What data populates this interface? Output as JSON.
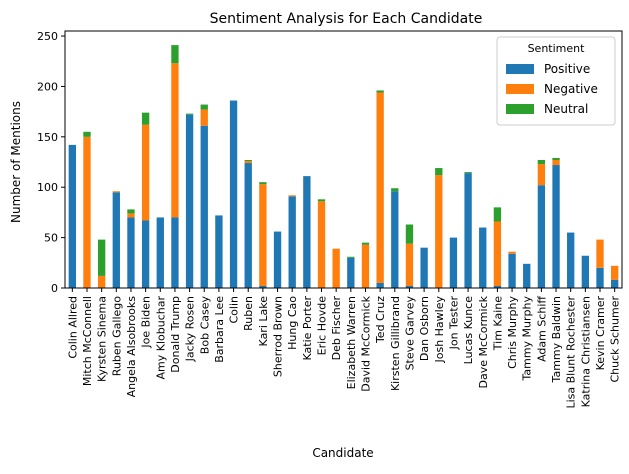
{
  "chart_data": {
    "type": "bar",
    "stacked": true,
    "title": "Sentiment Analysis for Each Candidate",
    "xlabel": "Candidate",
    "ylabel": "Number of Mentions",
    "ylim": [
      0,
      255
    ],
    "yticks": [
      0,
      50,
      100,
      150,
      200,
      250
    ],
    "grid": false,
    "legend": {
      "title": "Sentiment",
      "placement": "top-right"
    },
    "categories": [
      "Colin Allred",
      "Mitch McConnell",
      "Kyrsten Sinema",
      "Ruben Gallego",
      "Angela Alsobrooks",
      "Joe Biden",
      "Amy Klobuchar",
      "Donald Trump",
      "Jacky Rosen",
      "Bob Casey",
      "Barbara Lee",
      "Colin",
      "Ruben",
      "Kari Lake",
      "Sherrod Brown",
      "Hung Cao",
      "Katie Porter",
      "Eric Hovde",
      "Deb Fischer",
      "Elizabeth Warren",
      "David McCormick",
      "Ted Cruz",
      "Kirsten Gillibrand",
      "Steve Garvey",
      "Dan Osborn",
      "Josh Hawley",
      "Jon Tester",
      "Lucas Kunce",
      "Dave McCormick",
      "Tim Kaine",
      "Chris Murphy",
      "Tammy Murphy",
      "Adam Schiff",
      "Tammy Baldwin",
      "Lisa Blunt Rochester",
      "Katrina Christiansen",
      "Kevin Cramer",
      "Chuck Schumer"
    ],
    "series": [
      {
        "name": "Positive",
        "color": "#1f77b4",
        "values": [
          142,
          0,
          0,
          95,
          70,
          67,
          70,
          70,
          172,
          161,
          72,
          186,
          124,
          2,
          56,
          91,
          111,
          0,
          0,
          30,
          0,
          5,
          96,
          2,
          40,
          0,
          50,
          114,
          60,
          2,
          34,
          24,
          102,
          122,
          55,
          32,
          20,
          8
        ]
      },
      {
        "name": "Negative",
        "color": "#ff7f0e",
        "values": [
          0,
          150,
          12,
          1,
          4,
          95,
          0,
          153,
          0,
          16,
          0,
          0,
          2,
          101,
          0,
          1,
          0,
          86,
          39,
          0,
          43,
          189,
          0,
          42,
          0,
          112,
          0,
          0,
          0,
          64,
          2,
          0,
          21,
          5,
          0,
          0,
          28,
          14
        ]
      },
      {
        "name": "Neutral",
        "color": "#2ca02c",
        "values": [
          0,
          5,
          36,
          0,
          4,
          12,
          0,
          18,
          1,
          5,
          0,
          0,
          1,
          2,
          0,
          0,
          0,
          2,
          0,
          1,
          2,
          2,
          3,
          19,
          0,
          7,
          0,
          1,
          0,
          14,
          0,
          0,
          4,
          2,
          0,
          0,
          0,
          0
        ]
      }
    ]
  }
}
